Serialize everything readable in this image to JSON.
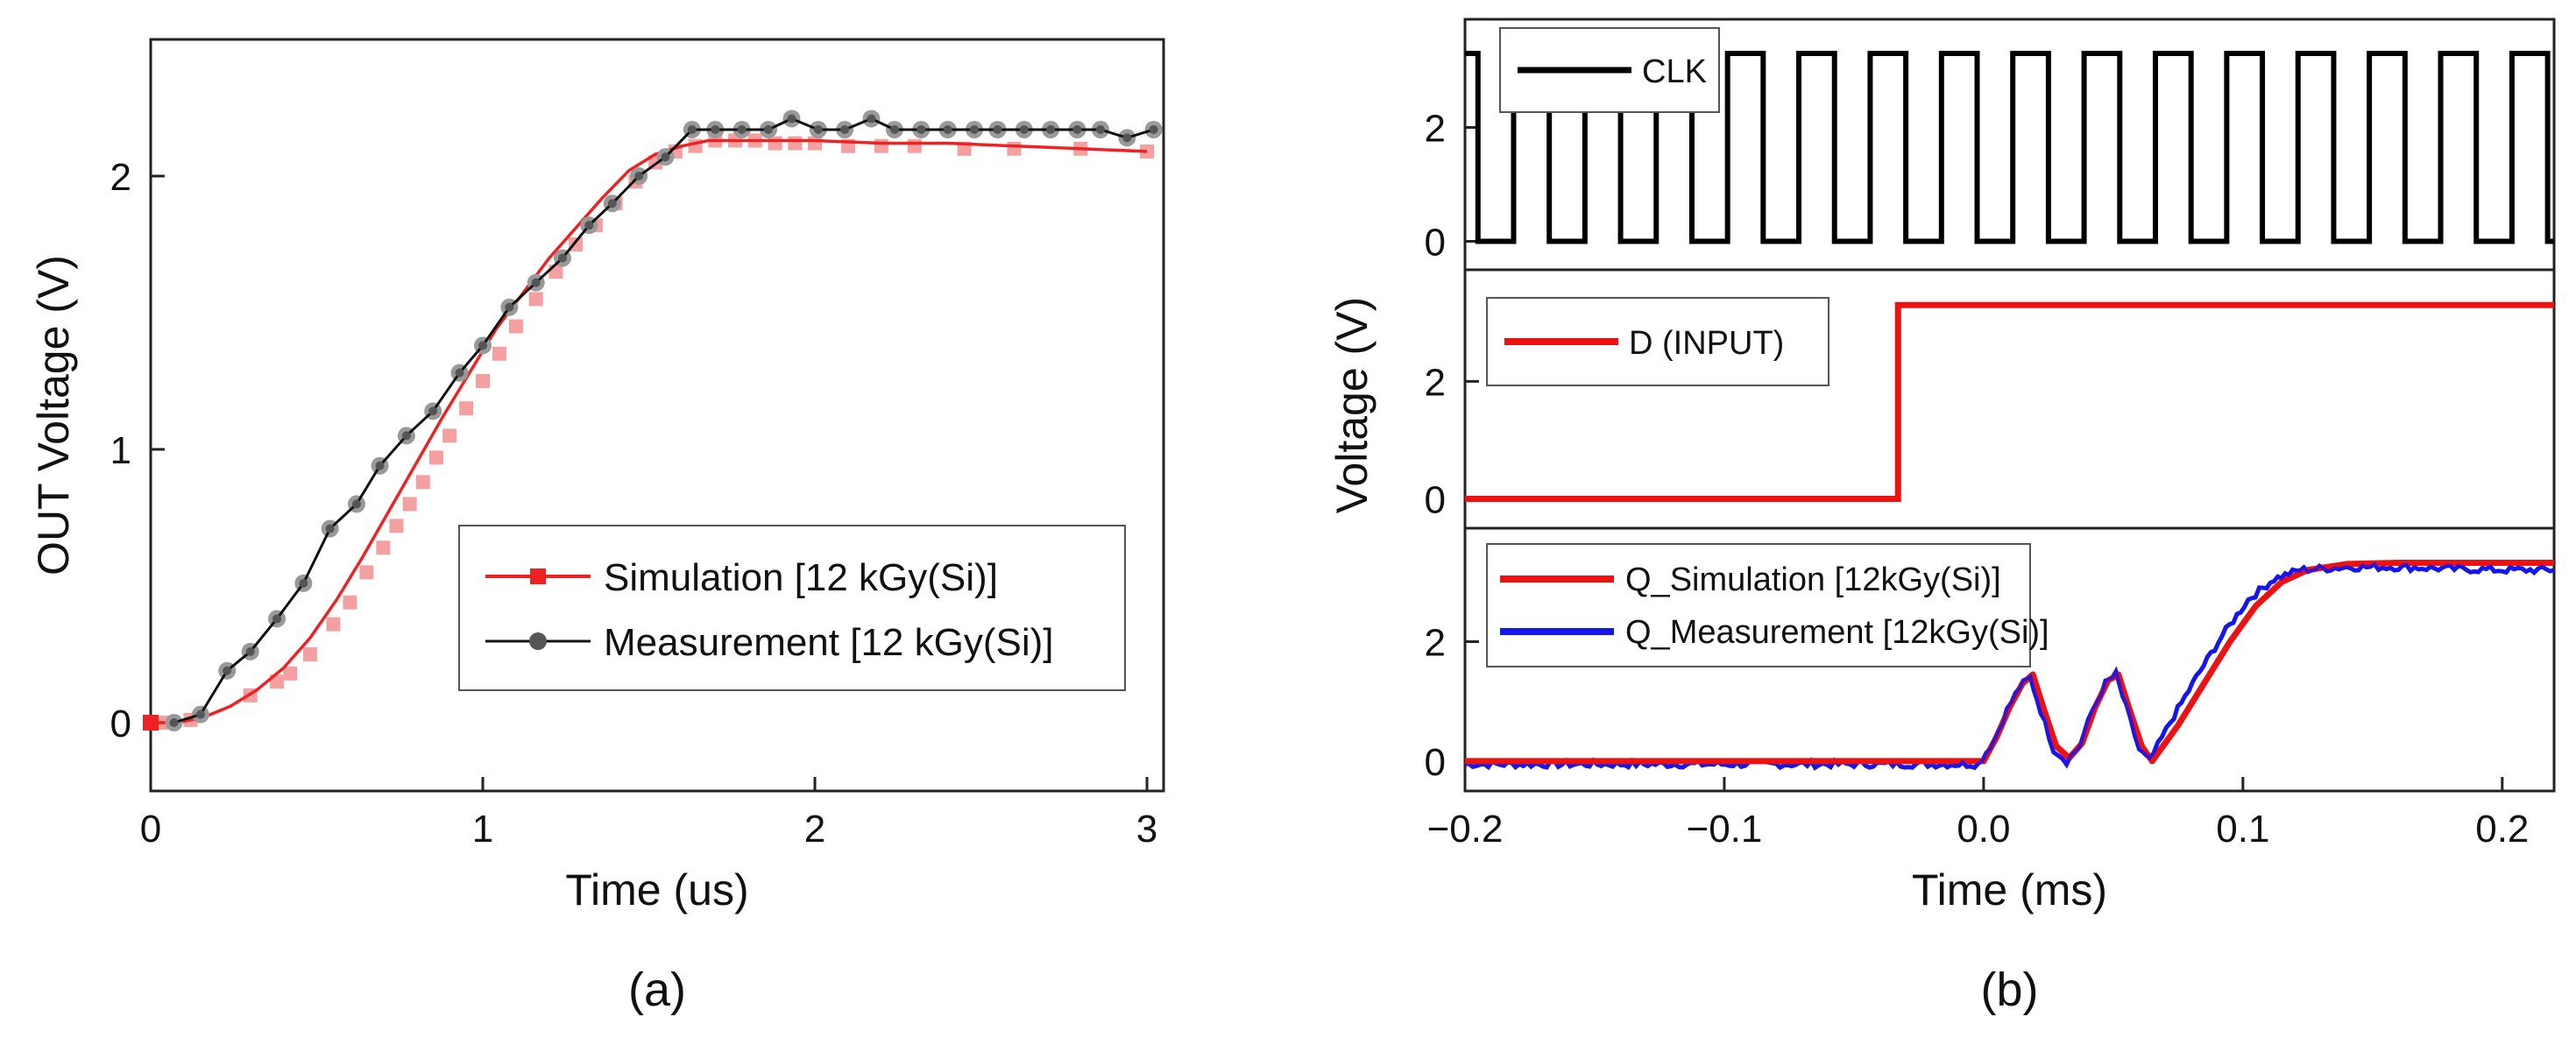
{
  "chart_data": [
    {
      "type": "line",
      "panel": "(a)",
      "caption": "(a)",
      "xlabel": "Time (us)",
      "ylabel": "OUT Voltage (V)",
      "xlim": [
        0,
        3.05
      ],
      "ylim": [
        -0.25,
        2.5
      ],
      "xticks": [
        0,
        1,
        2,
        3
      ],
      "xtick_labels": [
        "0",
        "1",
        "2",
        "3"
      ],
      "yticks": [
        0,
        1,
        2
      ],
      "ytick_labels": [
        "0",
        "1",
        "2"
      ],
      "grid": false,
      "legend_position": "center-right",
      "series": [
        {
          "name": "Simulation [12 kGy(Si)]",
          "color": "#ee2222",
          "marker_color": "#f5a0a0",
          "marker": "square",
          "line_x": [
            0,
            0.08,
            0.16,
            0.24,
            0.32,
            0.4,
            0.48,
            0.56,
            0.64,
            0.72,
            0.8,
            0.88,
            0.96,
            1.04,
            1.12,
            1.2,
            1.28,
            1.36,
            1.44,
            1.52,
            1.6,
            1.68,
            1.76,
            1.84,
            1.92,
            2.0,
            2.2,
            2.4,
            2.6,
            2.8,
            3.0
          ],
          "line_y": [
            0.0,
            0.0,
            0.02,
            0.06,
            0.12,
            0.2,
            0.31,
            0.45,
            0.61,
            0.78,
            0.95,
            1.12,
            1.28,
            1.44,
            1.57,
            1.7,
            1.81,
            1.92,
            2.02,
            2.08,
            2.11,
            2.13,
            2.13,
            2.13,
            2.13,
            2.13,
            2.12,
            2.12,
            2.11,
            2.1,
            2.09
          ],
          "marker_x": [
            0,
            0.03,
            0.06,
            0.12,
            0.3,
            0.38,
            0.42,
            0.48,
            0.55,
            0.6,
            0.65,
            0.7,
            0.74,
            0.78,
            0.82,
            0.86,
            0.9,
            0.95,
            1.0,
            1.05,
            1.1,
            1.16,
            1.22,
            1.28,
            1.34,
            1.4,
            1.46,
            1.52,
            1.58,
            1.64,
            1.7,
            1.76,
            1.82,
            1.88,
            1.94,
            2.0,
            2.1,
            2.2,
            2.3,
            2.45,
            2.6,
            2.8,
            3.0
          ],
          "marker_y": [
            0.0,
            0.0,
            0.0,
            0.01,
            0.1,
            0.15,
            0.18,
            0.25,
            0.36,
            0.44,
            0.55,
            0.64,
            0.72,
            0.8,
            0.88,
            0.97,
            1.05,
            1.15,
            1.25,
            1.35,
            1.45,
            1.55,
            1.65,
            1.75,
            1.82,
            1.9,
            1.98,
            2.05,
            2.09,
            2.11,
            2.13,
            2.13,
            2.13,
            2.12,
            2.12,
            2.12,
            2.11,
            2.11,
            2.11,
            2.1,
            2.1,
            2.1,
            2.09
          ]
        },
        {
          "name": "Measurement [12 kGy(Si)]",
          "color": "#111111",
          "marker_color": "#999999",
          "marker": "circle",
          "x": [
            0.07,
            0.15,
            0.23,
            0.3,
            0.38,
            0.46,
            0.54,
            0.62,
            0.69,
            0.77,
            0.85,
            0.93,
            1.0,
            1.08,
            1.16,
            1.24,
            1.32,
            1.39,
            1.47,
            1.55,
            1.63,
            1.7,
            1.78,
            1.86,
            1.93,
            2.01,
            2.09,
            2.17,
            2.24,
            2.32,
            2.4,
            2.48,
            2.55,
            2.63,
            2.71,
            2.79,
            2.86,
            2.94,
            3.02
          ],
          "y": [
            0.0,
            0.03,
            0.19,
            0.26,
            0.38,
            0.51,
            0.71,
            0.8,
            0.94,
            1.05,
            1.14,
            1.28,
            1.38,
            1.52,
            1.61,
            1.7,
            1.82,
            1.9,
            2.0,
            2.07,
            2.17,
            2.17,
            2.17,
            2.17,
            2.21,
            2.17,
            2.17,
            2.21,
            2.17,
            2.17,
            2.17,
            2.17,
            2.17,
            2.17,
            2.17,
            2.17,
            2.17,
            2.14,
            2.17
          ]
        }
      ]
    },
    {
      "type": "line",
      "panel": "(b)",
      "caption": "(b)",
      "xlabel": "Time (ms)",
      "ylabel": "Voltage (V)",
      "xlim": [
        -0.2,
        0.22
      ],
      "xticks": [
        -0.2,
        -0.1,
        0.0,
        0.1,
        0.2
      ],
      "xtick_labels": [
        "−0.2",
        "−0.1",
        "0.0",
        "0.1",
        "0.2"
      ],
      "grid": false,
      "subplots": [
        {
          "name": "CLK",
          "ylim": [
            -0.5,
            3.9
          ],
          "yticks": [
            0,
            2
          ],
          "ytick_labels": [
            "0",
            "2"
          ],
          "legend_position": "top-left",
          "series": [
            {
              "name": "CLK",
              "color": "#000000",
              "waveform": "square",
              "high": 3.3,
              "low": 0,
              "period_ms": 0.0275,
              "first_fall_ms": -0.195,
              "duty": 0.5
            }
          ]
        },
        {
          "name": "D",
          "ylim": [
            -0.5,
            3.9
          ],
          "yticks": [
            0,
            2
          ],
          "ytick_labels": [
            "0",
            "2"
          ],
          "legend_position": "top-left",
          "series": [
            {
              "name": "D (INPUT)",
              "color": "#ee1111",
              "x": [
                -0.2,
                -0.033,
                -0.033,
                0.22
              ],
              "y": [
                0,
                0,
                3.3,
                3.3
              ]
            }
          ]
        },
        {
          "name": "Q",
          "ylim": [
            -0.5,
            3.9
          ],
          "yticks": [
            0,
            2
          ],
          "ytick_labels": [
            "0",
            "2"
          ],
          "legend_position": "top-left",
          "series": [
            {
              "name": "Q_Simulation [12kGy(Si)]",
              "color": "#ee1111",
              "x": [
                -0.2,
                0.0,
                0.005,
                0.01,
                0.015,
                0.019,
                0.023,
                0.028,
                0.033,
                0.038,
                0.043,
                0.048,
                0.052,
                0.056,
                0.061,
                0.065,
                0.075,
                0.085,
                0.095,
                0.105,
                0.115,
                0.125,
                0.14,
                0.16,
                0.18,
                0.2,
                0.22
              ],
              "y": [
                0,
                0,
                0.4,
                0.9,
                1.3,
                1.45,
                0.9,
                0.25,
                0.05,
                0.3,
                0.9,
                1.35,
                1.45,
                0.9,
                0.25,
                0.0,
                0.6,
                1.3,
                2.0,
                2.6,
                3.0,
                3.2,
                3.3,
                3.32,
                3.32,
                3.32,
                3.32
              ]
            },
            {
              "name": "Q_Measurement [12kGy(Si)]",
              "color": "#1515ee",
              "x": [
                -0.2,
                -0.002,
                0.004,
                0.009,
                0.014,
                0.018,
                0.022,
                0.027,
                0.032,
                0.037,
                0.042,
                0.047,
                0.051,
                0.055,
                0.06,
                0.064,
                0.072,
                0.082,
                0.092,
                0.102,
                0.112,
                0.122,
                0.14,
                0.16,
                0.18,
                0.2,
                0.22
              ],
              "y": [
                -0.05,
                -0.05,
                0.35,
                0.85,
                1.25,
                1.4,
                0.85,
                0.2,
                0.0,
                0.25,
                0.85,
                1.3,
                1.45,
                0.9,
                0.2,
                0.0,
                0.65,
                1.4,
                2.1,
                2.7,
                3.05,
                3.2,
                3.25,
                3.25,
                3.22,
                3.2,
                3.2
              ],
              "noise": 0.06
            }
          ]
        }
      ]
    }
  ]
}
